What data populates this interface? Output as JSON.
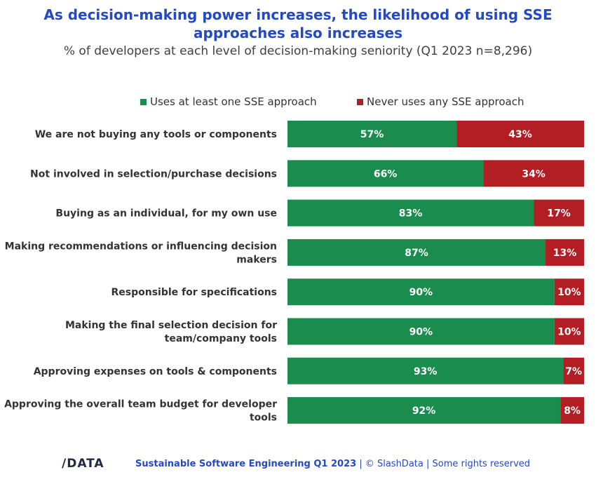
{
  "header": {
    "title_line1": "As decision-making power increases, the likelihood of using SSE",
    "title_line2": "approaches also increases",
    "subtitle": "% of developers at each level of decision-making seniority (Q1 2023 n=8,296)"
  },
  "legend": {
    "items": [
      {
        "label": "Uses at least one SSE approach",
        "color": "#1a8c4e"
      },
      {
        "label": "Never uses any SSE approach",
        "color": "#b21e23"
      }
    ]
  },
  "chart_data": {
    "type": "bar",
    "orientation": "horizontal",
    "stacked": true,
    "categories": [
      [
        "We are not buying any tools or components"
      ],
      [
        "Not involved in selection/purchase decisions"
      ],
      [
        "Buying as an individual, for my own use"
      ],
      [
        "Making recommendations or influencing decision",
        "makers"
      ],
      [
        "Responsible for specifications"
      ],
      [
        "Making the final selection decision for",
        "team/company tools"
      ],
      [
        "Approving expenses on tools & components"
      ],
      [
        "Approving the overall team budget for developer",
        "tools"
      ]
    ],
    "series": [
      {
        "name": "Uses at least one SSE approach",
        "color": "#1a8c4e",
        "values": [
          57,
          66,
          83,
          87,
          90,
          90,
          93,
          92
        ]
      },
      {
        "name": "Never uses any SSE approach",
        "color": "#b21e23",
        "values": [
          43,
          34,
          17,
          13,
          10,
          10,
          7,
          8
        ]
      }
    ],
    "value_suffix": "%",
    "xlim": [
      0,
      100
    ],
    "legend_position": "top"
  },
  "footer": {
    "logo": "/DATA",
    "report": "Sustainable Software Engineering Q1 2023",
    "rest": " | © SlashData | Some rights reserved"
  }
}
